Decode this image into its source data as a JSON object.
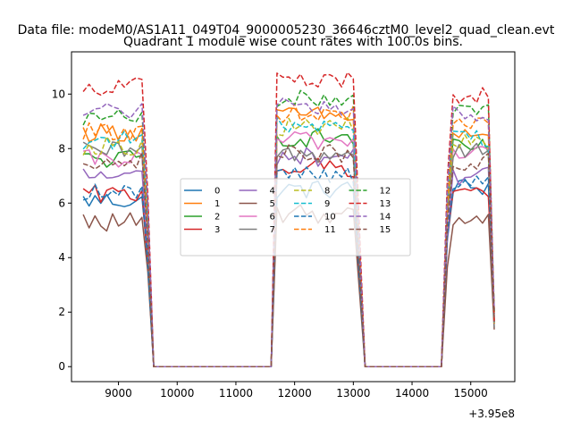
{
  "figure": {
    "suptitle": "Data file: modeM0/AS1A11_049T04_9000005230_36646cztM0_level2_quad_clean.evt"
  },
  "chart_data": {
    "type": "line",
    "title": "Quadrant 1 module wise count rates with 100.0s bins.",
    "xlabel": "",
    "ylabel": "",
    "x_offset_label": "+3.95e8",
    "xlim": [
      8200,
      15750
    ],
    "ylim": [
      -0.55,
      11.55
    ],
    "xticks": [
      9000,
      10000,
      11000,
      12000,
      13000,
      14000,
      15000
    ],
    "xtick_labels": [
      "9000",
      "10000",
      "11000",
      "12000",
      "13000",
      "14000",
      "15000"
    ],
    "yticks": [
      0,
      2,
      4,
      6,
      8,
      10
    ],
    "ytick_labels": [
      "0",
      "2",
      "4",
      "6",
      "8",
      "10"
    ],
    "grid": false,
    "legend_position": "center",
    "legend_columns": 4,
    "segments": [
      {
        "start": 8400,
        "end": 9500,
        "drop_to": 9600
      },
      {
        "start": 11700,
        "end": 13000,
        "drop_from": 11600,
        "drop_to": 13200
      },
      {
        "start": 14600,
        "end": 15300,
        "drop_from": 14500,
        "drop_to": 15400
      }
    ],
    "gap_value": 0,
    "series": [
      {
        "name": "0",
        "color": "#1f77b4",
        "dash": "solid",
        "levels": [
          6.1,
          6.5,
          6.6
        ]
      },
      {
        "name": "1",
        "color": "#ff7f0e",
        "dash": "solid",
        "levels": [
          8.6,
          9.2,
          8.5
        ]
      },
      {
        "name": "2",
        "color": "#2ca02c",
        "dash": "solid",
        "levels": [
          7.6,
          8.4,
          8.0
        ]
      },
      {
        "name": "3",
        "color": "#d62728",
        "dash": "solid",
        "levels": [
          6.3,
          7.3,
          6.5
        ]
      },
      {
        "name": "4",
        "color": "#9467bd",
        "dash": "solid",
        "levels": [
          7.0,
          7.7,
          7.0
        ]
      },
      {
        "name": "5",
        "color": "#8c564b",
        "dash": "solid",
        "levels": [
          5.3,
          5.6,
          5.4
        ]
      },
      {
        "name": "6",
        "color": "#e377c2",
        "dash": "solid",
        "levels": [
          7.6,
          8.3,
          7.9
        ]
      },
      {
        "name": "7",
        "color": "#7f7f7f",
        "dash": "solid",
        "levels": [
          7.9,
          7.8,
          8.0
        ]
      },
      {
        "name": "8",
        "color": "#bcbd22",
        "dash": "dashed",
        "levels": [
          8.1,
          8.8,
          8.2
        ]
      },
      {
        "name": "9",
        "color": "#17becf",
        "dash": "dashed",
        "levels": [
          8.3,
          8.9,
          8.4
        ]
      },
      {
        "name": "10",
        "color": "#1f77b4",
        "dash": "dashed",
        "levels": [
          6.4,
          7.1,
          6.7
        ]
      },
      {
        "name": "11",
        "color": "#ff7f0e",
        "dash": "dashed",
        "levels": [
          8.6,
          9.3,
          8.8
        ]
      },
      {
        "name": "12",
        "color": "#2ca02c",
        "dash": "dashed",
        "levels": [
          9.1,
          9.8,
          9.6
        ]
      },
      {
        "name": "13",
        "color": "#d62728",
        "dash": "dashed",
        "levels": [
          10.3,
          10.5,
          10.0
        ]
      },
      {
        "name": "14",
        "color": "#9467bd",
        "dash": "dashed",
        "levels": [
          9.4,
          9.5,
          9.3
        ]
      },
      {
        "name": "15",
        "color": "#8c564b",
        "dash": "dashed",
        "levels": [
          7.6,
          7.8,
          7.5
        ]
      }
    ]
  }
}
